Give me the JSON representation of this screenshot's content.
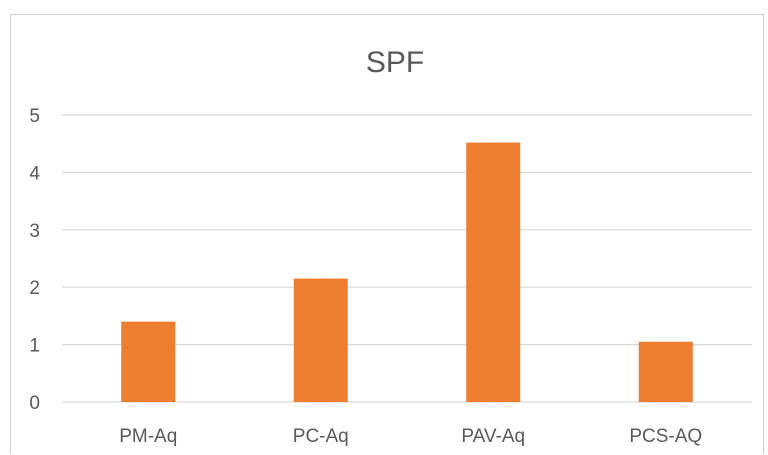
{
  "chart_data": {
    "type": "bar",
    "title": "SPF",
    "xlabel": "",
    "ylabel": "",
    "categories": [
      "PM-Aq",
      "PC-Aq",
      "PAV-Aq",
      "PCS-AQ"
    ],
    "values": [
      1.4,
      2.15,
      4.52,
      1.05
    ],
    "ylim": [
      0,
      5
    ],
    "yticks": [
      "0",
      "1",
      "2",
      "3",
      "4",
      "5"
    ],
    "grid": true,
    "legend": "none",
    "bar_color": "#ED7D31",
    "grid_color": "#D9D9D9"
  }
}
